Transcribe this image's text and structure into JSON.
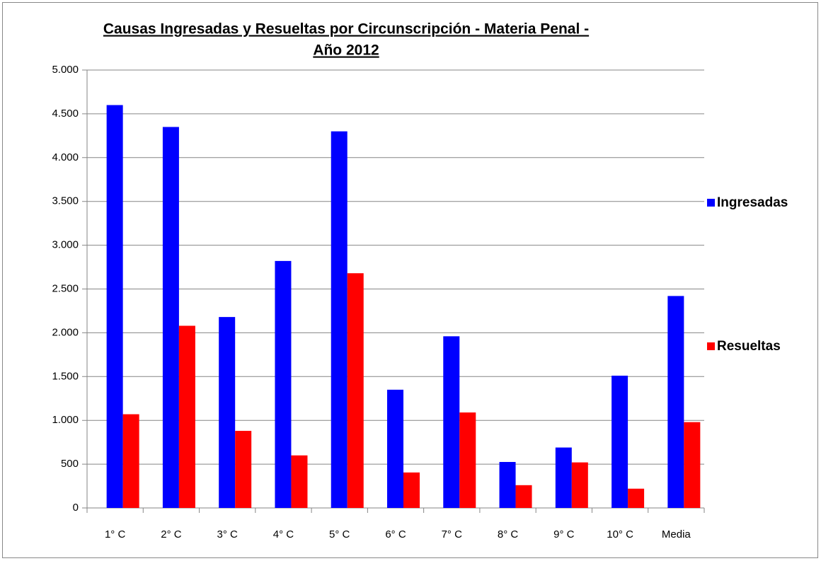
{
  "chart_data": {
    "type": "bar",
    "title": [
      "Causas Ingresadas y Resueltas por Circunscripción - Materia Penal -",
      "Año 2012"
    ],
    "categories": [
      "1° C",
      "2° C",
      "3° C",
      "4° C",
      "5° C",
      "6° C",
      "7° C",
      "8° C",
      "9° C",
      "10° C",
      "Media"
    ],
    "series": [
      {
        "name": "Ingresadas",
        "color": "#0000ff",
        "values": [
          4600,
          4350,
          2180,
          2820,
          4300,
          1350,
          1960,
          525,
          690,
          1510,
          2420
        ]
      },
      {
        "name": "Resueltas",
        "color": "#ff0000",
        "values": [
          1070,
          2080,
          880,
          600,
          2680,
          405,
          1090,
          260,
          520,
          220,
          980
        ]
      }
    ],
    "ylim": [
      0,
      5000
    ],
    "yticks": [
      0,
      500,
      {
        "value": 1000,
        "label": "1.000"
      },
      {
        "value": 1500,
        "label": "1.500"
      },
      {
        "value": 2000,
        "label": "2.000"
      },
      {
        "value": 2500,
        "label": "2.500"
      },
      {
        "value": 3000,
        "label": "3.000"
      },
      {
        "value": 3500,
        "label": "3.500"
      },
      {
        "value": 4000,
        "label": "4.000"
      },
      {
        "value": 4500,
        "label": "4.500"
      },
      {
        "value": 5000,
        "label": "5.000"
      }
    ],
    "grid": true,
    "legend": "right"
  }
}
